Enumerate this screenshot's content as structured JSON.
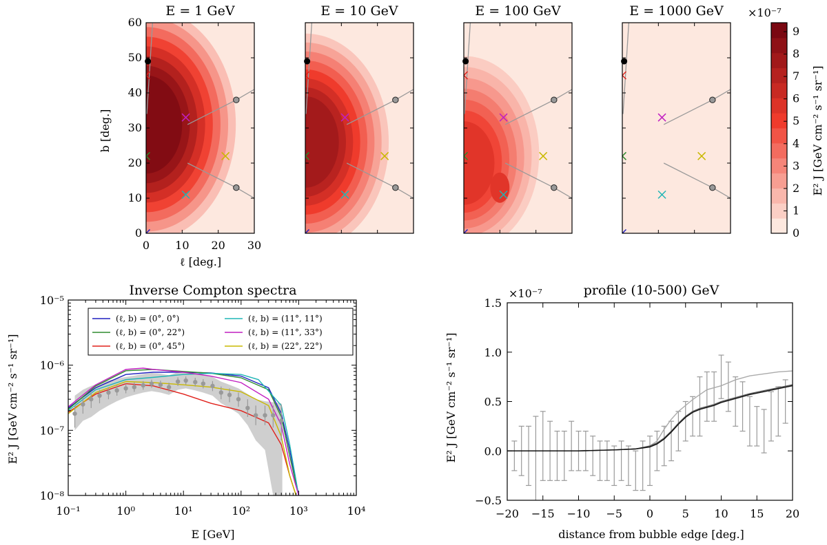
{
  "maps": {
    "titles": [
      "E = 1 GeV",
      "E = 10 GeV",
      "E = 100 GeV",
      "E = 1000 GeV"
    ],
    "xlabel": "ℓ [deg.]",
    "ylabel": "b [deg.]",
    "xlim": [
      0,
      30
    ],
    "ylim": [
      0,
      60
    ],
    "xticks": [
      "0",
      "10",
      "20",
      "30"
    ],
    "yticks": [
      "0",
      "10",
      "20",
      "30",
      "40",
      "50",
      "60"
    ],
    "colorbar": {
      "label": "E² J [GeV cm⁻² s⁻¹ sr⁻¹]",
      "exponent": "×10⁻⁷",
      "ticks": [
        "0",
        "1",
        "2",
        "3",
        "4",
        "5",
        "6",
        "7",
        "8",
        "9"
      ],
      "max": 9.4,
      "low_color": "#fde8df",
      "high_color": "#67000d"
    },
    "markers": [
      {
        "l": 0,
        "b": 0,
        "color": "#1f1fbf"
      },
      {
        "l": 0,
        "b": 22,
        "color": "#2e8b2e"
      },
      {
        "l": 0,
        "b": 45,
        "color": "#e0201a"
      },
      {
        "l": 11,
        "b": 11,
        "color": "#1fb5b5"
      },
      {
        "l": 11,
        "b": 33,
        "color": "#c11fc1"
      },
      {
        "l": 22,
        "b": 22,
        "color": "#c9b800"
      }
    ]
  },
  "chart_data": [
    {
      "type": "line",
      "title": "Inverse Compton spectra",
      "xlabel": "E [GeV]",
      "ylabel": "E² J [GeV cm⁻² s⁻¹ sr⁻¹]",
      "xscale": "log",
      "yscale": "log",
      "xlim": [
        0.1,
        10000
      ],
      "ylim": [
        1e-08,
        1e-05
      ],
      "xticks": [
        "10⁻¹",
        "10⁰",
        "10¹",
        "10²",
        "10³",
        "10⁴"
      ],
      "yticks": [
        "10⁻⁸",
        "10⁻⁷",
        "10⁻⁶",
        "10⁻⁵"
      ],
      "legend_location": "top",
      "series": [
        {
          "name": "(ℓ, b) = (0°, 0°)",
          "color": "#1f1fbf",
          "x": [
            0.1,
            0.3,
            1,
            3,
            10,
            30,
            100,
            300,
            500,
            700,
            1000
          ],
          "y": [
            2.2e-07,
            4.5e-07,
            7.2e-07,
            7.8e-07,
            7.8e-07,
            7.6e-07,
            6.8e-07,
            4.5e-07,
            1.8e-07,
            5e-08,
            1e-08
          ]
        },
        {
          "name": "(ℓ, b) = (0°, 22°)",
          "color": "#2e8b2e",
          "x": [
            0.1,
            0.3,
            1,
            3,
            10,
            30,
            100,
            300,
            500,
            700,
            1000
          ],
          "y": [
            2.1e-07,
            4.8e-07,
            8.2e-07,
            8.6e-07,
            8e-07,
            7.5e-07,
            6.4e-07,
            4.2e-07,
            1.6e-07,
            4e-08,
            1e-08
          ]
        },
        {
          "name": "(ℓ, b) = (0°, 45°)",
          "color": "#e0201a",
          "x": [
            0.1,
            0.3,
            1,
            3,
            10,
            30,
            100,
            300,
            500,
            700,
            900
          ],
          "y": [
            1.9e-07,
            3.6e-07,
            5.2e-07,
            4.8e-07,
            3.6e-07,
            2.6e-07,
            2e-07,
            1.3e-07,
            6e-08,
            2e-08,
            1e-08
          ]
        },
        {
          "name": "(ℓ, b) = (11°, 11°)",
          "color": "#1fb5b5",
          "x": [
            0.1,
            0.3,
            1,
            3,
            10,
            30,
            100,
            200,
            500,
            700,
            1000
          ],
          "y": [
            2e-07,
            4.2e-07,
            6e-07,
            6.5e-07,
            7.2e-07,
            7.5e-07,
            7.2e-07,
            6e-07,
            2.4e-07,
            6e-08,
            1e-08
          ]
        },
        {
          "name": "(ℓ, b) = (11°, 33°)",
          "color": "#c11fc1",
          "x": [
            0.1,
            0.3,
            1,
            2,
            3,
            10,
            30,
            100,
            300,
            500,
            700,
            1000
          ],
          "y": [
            2.3e-07,
            5e-07,
            8.6e-07,
            9e-07,
            8.6e-07,
            7.8e-07,
            6.8e-07,
            5.4e-07,
            3e-07,
            1.2e-07,
            3e-08,
            1e-08
          ]
        },
        {
          "name": "(ℓ, b) = (22°, 22°)",
          "color": "#c9b800",
          "x": [
            0.1,
            0.3,
            1,
            3,
            10,
            30,
            100,
            300,
            500,
            700,
            900
          ],
          "y": [
            1.8e-07,
            3.8e-07,
            5.6e-07,
            5.4e-07,
            5e-07,
            4.6e-07,
            3.9e-07,
            2.4e-07,
            8e-08,
            2e-08,
            1e-08
          ]
        }
      ],
      "data_points": {
        "x": [
          0.13,
          0.18,
          0.25,
          0.35,
          0.5,
          0.7,
          1,
          1.4,
          2,
          2.8,
          4,
          5.6,
          8,
          11,
          16,
          22,
          32,
          45,
          63,
          90,
          130,
          180,
          260,
          360,
          500
        ],
        "y": [
          1.8e-07,
          2.5e-07,
          3e-07,
          3.4e-07,
          3.8e-07,
          4.1e-07,
          4.4e-07,
          4.6e-07,
          4.9e-07,
          5.2e-07,
          5e-07,
          4.6e-07,
          5.6e-07,
          5.8e-07,
          5.5e-07,
          5.2e-07,
          4.8e-07,
          3.8e-07,
          3.5e-07,
          3e-07,
          2.2e-07,
          1.7e-07,
          1.7e-07,
          1.7e-07,
          1.4e-07
        ],
        "err_lo": [
          1.1e-07,
          1.8e-07,
          2.2e-07,
          2.6e-07,
          3e-07,
          3.4e-07,
          3.7e-07,
          3.9e-07,
          4.2e-07,
          4.5e-07,
          4.3e-07,
          3.9e-07,
          4.8e-07,
          5e-07,
          4.7e-07,
          4.4e-07,
          4e-07,
          3e-07,
          2.7e-07,
          2.3e-07,
          1.6e-07,
          1.2e-07,
          1.2e-07,
          1.1e-07,
          7e-08
        ],
        "err_hi": [
          2.4e-07,
          3.2e-07,
          3.8e-07,
          4.2e-07,
          4.6e-07,
          4.9e-07,
          5.2e-07,
          5.4e-07,
          5.7e-07,
          6e-07,
          5.8e-07,
          5.4e-07,
          6.5e-07,
          6.7e-07,
          6.4e-07,
          6.1e-07,
          5.7e-07,
          4.7e-07,
          4.4e-07,
          3.8e-07,
          3e-07,
          2.4e-07,
          2.4e-07,
          2.4e-07,
          2.5e-07
        ],
        "band_lo": [
          1e-07,
          1.4e-07,
          1.6e-07,
          2e-07,
          2.4e-07,
          2.8e-07,
          3.2e-07,
          3.5e-07,
          3.8e-07,
          4e-07,
          3.8e-07,
          3.5e-07,
          4.2e-07,
          4.4e-07,
          4.1e-07,
          3.8e-07,
          3.4e-07,
          2.6e-07,
          2.2e-07,
          1.8e-07,
          1.2e-07,
          7e-08,
          5e-08,
          1e-08,
          1e-08
        ],
        "band_hi": [
          3.4e-07,
          4.2e-07,
          4.8e-07,
          5.3e-07,
          5.8e-07,
          6.2e-07,
          6.6e-07,
          6.9e-07,
          7.3e-07,
          7.6e-07,
          7.4e-07,
          7e-07,
          7.8e-07,
          8e-07,
          7.6e-07,
          7.2e-07,
          6.6e-07,
          5.6e-07,
          5e-07,
          4.4e-07,
          3.6e-07,
          3e-07,
          2.8e-07,
          2.7e-07,
          2.6e-07
        ],
        "color": "#999999"
      }
    },
    {
      "type": "line",
      "title": "profile (10-500) GeV",
      "xlabel": "distance from bubble edge [deg.]",
      "ylabel": "E² J [GeV cm⁻² s⁻¹ sr⁻¹]",
      "exponent": "×10⁻⁷",
      "xlim": [
        -20,
        20
      ],
      "ylim": [
        -0.5,
        1.5
      ],
      "xticks": [
        "−20",
        "−15",
        "−10",
        "−5",
        "0",
        "5",
        "10",
        "15",
        "20"
      ],
      "yticks": [
        "−0.5",
        "0.0",
        "0.5",
        "1.0",
        "1.5"
      ],
      "series": [
        {
          "color": "#aaaaaa",
          "x": [
            -20,
            -10,
            -5,
            -2,
            0,
            1,
            2,
            3,
            4,
            5,
            6,
            7,
            8,
            9,
            10,
            12,
            14,
            16,
            18,
            20
          ],
          "y": [
            0,
            0,
            0.01,
            0.02,
            0.05,
            0.1,
            0.22,
            0.32,
            0.4,
            0.46,
            0.52,
            0.57,
            0.62,
            0.64,
            0.66,
            0.72,
            0.76,
            0.78,
            0.8,
            0.81
          ]
        },
        {
          "color": "#555555",
          "x": [
            -20,
            -10,
            -5,
            -2,
            0,
            1,
            2,
            3,
            4,
            5,
            6,
            7,
            8,
            9,
            10,
            12,
            14,
            16,
            18,
            20
          ],
          "y": [
            0,
            0,
            0.01,
            0.02,
            0.05,
            0.08,
            0.13,
            0.2,
            0.28,
            0.35,
            0.4,
            0.43,
            0.45,
            0.47,
            0.5,
            0.54,
            0.58,
            0.61,
            0.64,
            0.67
          ]
        },
        {
          "color": "#111111",
          "x": [
            -20,
            -10,
            -5,
            -2,
            0,
            1,
            2,
            3,
            4,
            5,
            6,
            7,
            8,
            9,
            10,
            12,
            14,
            16,
            18,
            20
          ],
          "y": [
            0,
            0,
            0.01,
            0.02,
            0.04,
            0.07,
            0.12,
            0.19,
            0.27,
            0.34,
            0.39,
            0.42,
            0.44,
            0.46,
            0.49,
            0.53,
            0.57,
            0.6,
            0.63,
            0.66
          ]
        }
      ],
      "data_points": {
        "x": [
          -19,
          -18,
          -17,
          -16,
          -15,
          -14,
          -13,
          -12,
          -11,
          -10,
          -9,
          -8,
          -7,
          -6,
          -5,
          -4,
          -3,
          -2,
          -1,
          0,
          1,
          2,
          3,
          4,
          5,
          6,
          7,
          8,
          9,
          10,
          11,
          12,
          13,
          14,
          15,
          16,
          17,
          18,
          19
        ],
        "y": [
          -0.05,
          0.0,
          -0.05,
          -0.1,
          0.05,
          0.0,
          -0.05,
          -0.05,
          0.05,
          0.0,
          0.0,
          -0.05,
          -0.1,
          -0.1,
          -0.15,
          -0.1,
          -0.15,
          -0.2,
          -0.15,
          -0.1,
          0.0,
          0.05,
          0.1,
          0.2,
          0.3,
          0.35,
          0.45,
          0.55,
          0.55,
          0.75,
          0.65,
          0.5,
          0.45,
          0.3,
          0.25,
          0.2,
          0.35,
          0.4,
          0.5
        ],
        "err": [
          0.15,
          0.25,
          0.3,
          0.45,
          0.35,
          0.3,
          0.25,
          0.25,
          0.25,
          0.2,
          0.2,
          0.2,
          0.2,
          0.2,
          0.2,
          0.2,
          0.2,
          0.2,
          0.25,
          0.25,
          0.2,
          0.2,
          0.2,
          0.2,
          0.2,
          0.2,
          0.3,
          0.25,
          0.25,
          0.22,
          0.25,
          0.25,
          0.25,
          0.25,
          0.2,
          0.22,
          0.25,
          0.25,
          0.22
        ],
        "color": "#999999"
      }
    }
  ]
}
